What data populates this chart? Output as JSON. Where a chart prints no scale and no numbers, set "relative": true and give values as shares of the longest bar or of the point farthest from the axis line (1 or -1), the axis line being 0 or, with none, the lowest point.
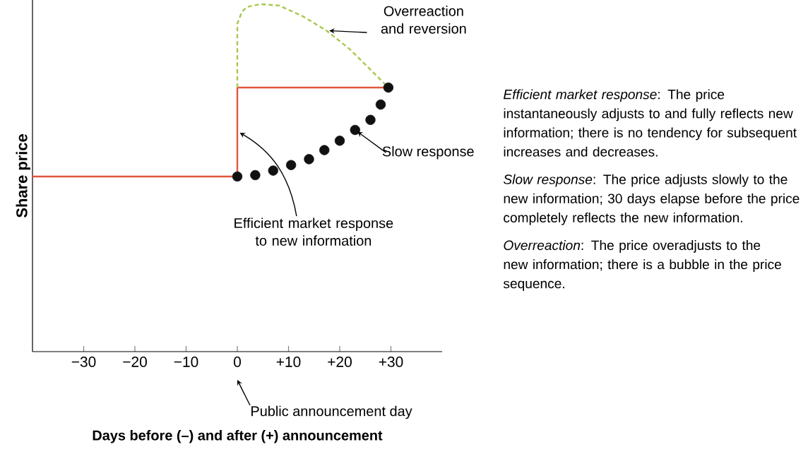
{
  "chart_data": {
    "type": "line",
    "relative": true,
    "xlabel": "Days before (–) and after (+) announcement",
    "ylabel": "Share price",
    "xlim": [
      -40,
      40
    ],
    "xticks": [
      {
        "value": -30,
        "label": "−30"
      },
      {
        "value": -20,
        "label": "−20"
      },
      {
        "value": -10,
        "label": "−10"
      },
      0,
      {
        "value": 10,
        "label": "+10"
      },
      {
        "value": 20,
        "label": "+20"
      },
      {
        "value": 30,
        "label": "+30"
      }
    ],
    "series": [
      {
        "color": "#e0563c",
        "x": [
          -40,
          0,
          0,
          30
        ],
        "values": [
          0.504,
          0.504,
          0.76,
          0.76
        ]
      },
      {
        "type": "scatter",
        "color": "#111111",
        "marker": "circle",
        "x": [
          0,
          3.5,
          7,
          10.5,
          14,
          17,
          20,
          23,
          26,
          28,
          29.5
        ],
        "values": [
          0.504,
          0.508,
          0.521,
          0.537,
          0.554,
          0.58,
          0.607,
          0.638,
          0.667,
          0.711,
          0.76
        ]
      },
      {
        "type": "line",
        "color": "#a6c84c",
        "line_style": "dashed",
        "x": [
          0,
          0,
          0.9,
          1.9,
          4.5,
          8.2,
          12.8,
          17.4,
          22,
          25.7,
          29.5
        ],
        "values": [
          0.76,
          0.944,
          0.978,
          0.992,
          1.0,
          0.996,
          0.965,
          0.924,
          0.87,
          0.816,
          0.76
        ]
      }
    ],
    "annotations": [
      {
        "text": "Overreaction and reversion",
        "x": 17.4,
        "y": 0.924
      },
      {
        "text": "Slow response",
        "x": 23,
        "y": 0.638
      },
      {
        "text": "Efficient market response to new information",
        "x": 0,
        "y": 0.634
      },
      "Public announcement day",
      "*Efficient market response*: The price instantaneously adjusts to and fully reflects new information; there is no tendency for subsequent increases and decreases.",
      "*Slow response*: The price adjusts slowly to the new information; 30 days elapse before the price completely reflects the new information.",
      "*Overreaction*: The price overadjusts to the new information; there is a bubble in the price sequence."
    ]
  }
}
